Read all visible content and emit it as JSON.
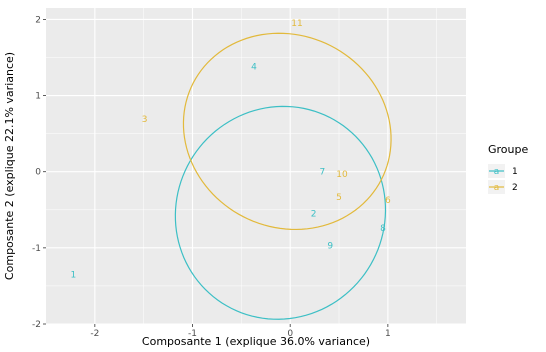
{
  "chart_data": {
    "type": "scatter",
    "xlabel": "Composante 1 (explique 36.0% variance)",
    "ylabel": "Composante 2 (explique 22.1% variance)",
    "xlim": [
      -2.5,
      1.8
    ],
    "ylim": [
      -2.0,
      2.15
    ],
    "xticks": [
      "-2",
      "-1",
      "0",
      "1"
    ],
    "yticks": [
      "-2",
      "-1",
      "0",
      "1",
      "2"
    ],
    "grid": true,
    "legend": {
      "title": "Groupe",
      "position": "right",
      "key_glyph": "a",
      "entries": [
        "1",
        "2"
      ]
    },
    "colors": {
      "1": "#3cbfc5",
      "2": "#e2b93b",
      "panel": "#ebebeb",
      "grid": "#ffffff"
    },
    "points": [
      {
        "label": "1",
        "group": "1",
        "x": -2.22,
        "y": -1.35
      },
      {
        "label": "2",
        "group": "1",
        "x": 0.24,
        "y": -0.55
      },
      {
        "label": "3",
        "group": "2",
        "x": -1.49,
        "y": 0.69
      },
      {
        "label": "4",
        "group": "1",
        "x": -0.37,
        "y": 1.38
      },
      {
        "label": "5",
        "group": "2",
        "x": 0.5,
        "y": -0.33
      },
      {
        "label": "6",
        "group": "2",
        "x": 1.0,
        "y": -0.37
      },
      {
        "label": "7",
        "group": "1",
        "x": 0.33,
        "y": 0.0
      },
      {
        "label": "8",
        "group": "1",
        "x": 0.95,
        "y": -0.74
      },
      {
        "label": "9",
        "group": "1",
        "x": 0.41,
        "y": -0.97
      },
      {
        "label": "10",
        "group": "2",
        "x": 0.53,
        "y": -0.03
      },
      {
        "label": "11",
        "group": "2",
        "x": 0.07,
        "y": 1.95
      }
    ],
    "ellipses": [
      {
        "group": "1",
        "cx": -0.1,
        "cy": -0.54,
        "rx": 1.74,
        "ry": 1.62,
        "angle_deg": 12
      },
      {
        "group": "2",
        "cx": -0.03,
        "cy": 0.53,
        "rx": 1.73,
        "ry": 1.48,
        "angle_deg": -15
      }
    ]
  }
}
